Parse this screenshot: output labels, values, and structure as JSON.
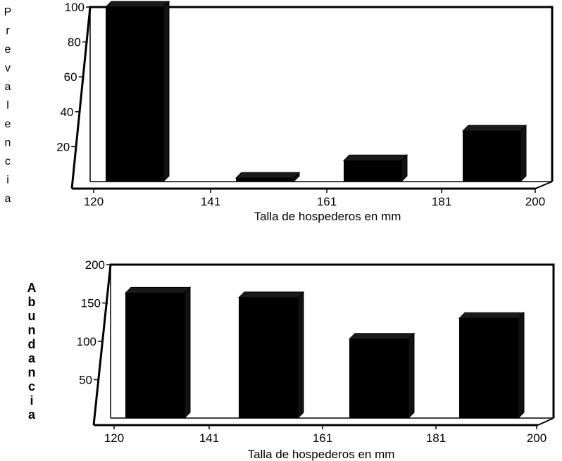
{
  "chart_data": [
    {
      "type": "bar",
      "categories": [
        "120",
        "141",
        "161",
        "181",
        "200"
      ],
      "values": [
        100,
        0,
        2,
        12,
        29
      ],
      "xlabel": "Talla de hospederos en mm",
      "ylabel": "Prevalencia",
      "ylim": [
        0,
        100
      ],
      "yticks": [
        "100",
        "80",
        "60",
        "40",
        "20"
      ],
      "ytick_values": [
        100,
        80,
        60,
        40,
        20
      ],
      "grid": false,
      "colors": {
        "bar": "#000000"
      }
    },
    {
      "type": "bar",
      "categories": [
        "120",
        "141",
        "161",
        "181",
        "200"
      ],
      "values": [
        163,
        0,
        157,
        103,
        130
      ],
      "xlabel": "Talla de hospederos en mm",
      "ylabel": "Abundancia",
      "ylim": [
        0,
        200
      ],
      "yticks": [
        "200",
        "150",
        "100",
        "50"
      ],
      "ytick_values": [
        200,
        150,
        100,
        50
      ],
      "grid": false,
      "colors": {
        "bar": "#000000"
      }
    }
  ]
}
